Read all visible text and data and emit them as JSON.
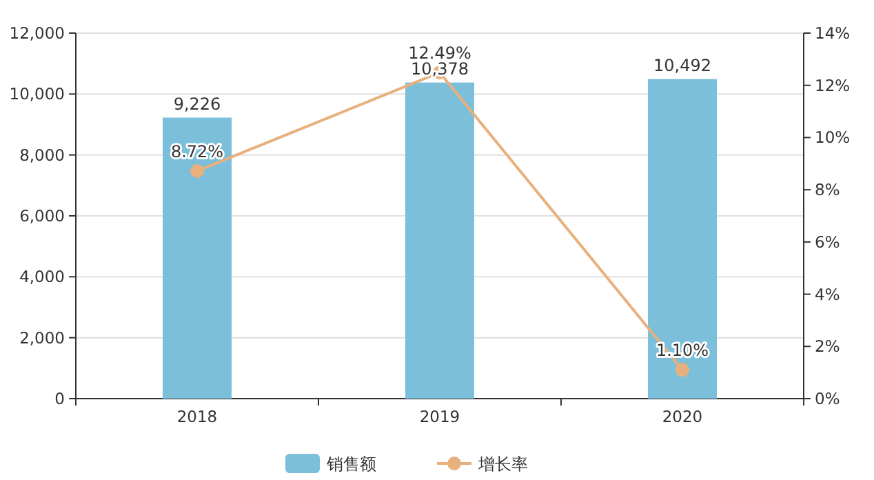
{
  "chart_data": {
    "type": "bar",
    "categories": [
      "2018",
      "2019",
      "2020"
    ],
    "series": [
      {
        "name": "销售额",
        "color": "#7bbfdb",
        "values": [
          9226,
          10378,
          10492
        ],
        "value_labels": [
          "9,226",
          "10,378",
          "10,492"
        ]
      },
      {
        "name": "增长率",
        "type": "line",
        "axis": "y2",
        "color": "#e8b07c",
        "values": [
          8.72,
          12.49,
          1.1
        ],
        "value_labels": [
          "8.72%",
          "12.49%",
          "1.10%"
        ]
      }
    ],
    "ylim": [
      0,
      12000
    ],
    "yticks": [
      0,
      {
        "value": 2000,
        "label": "2,000"
      },
      {
        "value": 4000,
        "label": "4,000"
      },
      {
        "value": 6000,
        "label": "6,000"
      },
      {
        "value": 8000,
        "label": "8,000"
      },
      {
        "value": 10000,
        "label": "10,000"
      },
      {
        "value": 12000,
        "label": "12,000"
      }
    ],
    "y2lim": [
      0,
      14
    ],
    "y2ticks": [
      {
        "value": 0,
        "label": "0%"
      },
      {
        "value": 2,
        "label": "2%"
      },
      {
        "value": 4,
        "label": "4%"
      },
      {
        "value": 6,
        "label": "6%"
      },
      {
        "value": 8,
        "label": "8%"
      },
      {
        "value": 10,
        "label": "10%"
      },
      {
        "value": 12,
        "label": "12%"
      },
      {
        "value": 14,
        "label": "14%"
      }
    ],
    "grid": "y",
    "legend": "bottom",
    "marker": "circle"
  }
}
